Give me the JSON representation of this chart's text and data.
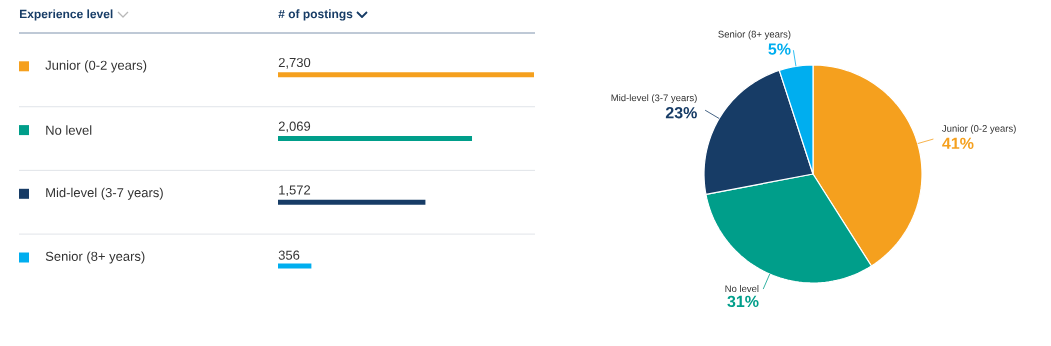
{
  "chart_data": [
    {
      "type": "bar",
      "orientation": "horizontal",
      "ylabel": "Experience level",
      "xlabel": "# of postings",
      "categories": [
        "Junior (0-2 years)",
        "No level",
        "Mid-level (3-7 years)",
        "Senior (8+ years)"
      ],
      "values": [
        2730,
        2069,
        1572,
        356
      ],
      "colors": [
        "#f5a01e",
        "#009e8a",
        "#173c66",
        "#00aeef"
      ],
      "value_labels": [
        "2,730",
        "2,069",
        "1,572",
        "356"
      ]
    },
    {
      "type": "pie",
      "categories": [
        "Junior (0-2 years)",
        "No level",
        "Mid-level (3-7 years)",
        "Senior (8+ years)"
      ],
      "values": [
        41,
        31,
        23,
        5
      ],
      "colors": [
        "#f5a01e",
        "#009e8a",
        "#173c66",
        "#00aeef"
      ],
      "value_labels": [
        "41%",
        "31%",
        "23%",
        "5%"
      ]
    }
  ]
}
